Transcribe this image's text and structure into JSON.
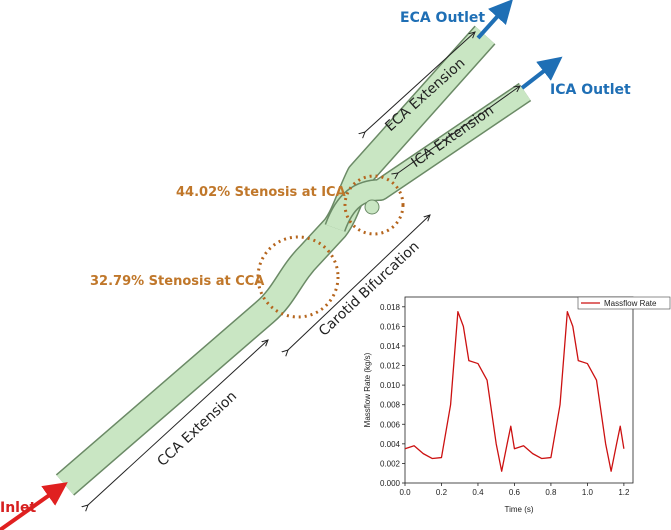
{
  "labels": {
    "eca_outlet": "ECA Outlet",
    "ica_outlet": "ICA Outlet",
    "eca_extension": "ECA Extension",
    "ica_extension": "ICA Extension",
    "ica_stenosis": "44.02% Stenosis at ICA",
    "cca_stenosis": "32.79% Stenosis at CCA",
    "carotid_bifurcation": "Carotid Bifurcation",
    "cca_extension": "CCA Extension",
    "inlet": "Inlet"
  },
  "chart_data": {
    "type": "line",
    "x_label": "Time (s)",
    "y_label": "Massflow Rate (kg/s)",
    "x": [
      0.0,
      0.05,
      0.1,
      0.15,
      0.2,
      0.25,
      0.29,
      0.32,
      0.35,
      0.4,
      0.45,
      0.5,
      0.53,
      0.56,
      0.58,
      0.6,
      0.65,
      0.7,
      0.75,
      0.8,
      0.85,
      0.89,
      0.92,
      0.95,
      1.0,
      1.05,
      1.1,
      1.13,
      1.16,
      1.18,
      1.2
    ],
    "series": [
      {
        "name": "Massflow Rate",
        "color": "#cc1111",
        "values": [
          0.0035,
          0.0038,
          0.003,
          0.0025,
          0.0026,
          0.008,
          0.0175,
          0.016,
          0.0125,
          0.0122,
          0.0105,
          0.004,
          0.0012,
          0.004,
          0.0058,
          0.0035,
          0.0038,
          0.003,
          0.0025,
          0.0026,
          0.008,
          0.0175,
          0.016,
          0.0125,
          0.0122,
          0.0105,
          0.004,
          0.0012,
          0.004,
          0.0058,
          0.0035
        ]
      }
    ],
    "xlim": [
      0,
      1.25
    ],
    "ylim": [
      0,
      0.019
    ],
    "xticks": [
      {
        "value": 0.0,
        "label": "0.0"
      },
      0.2,
      0.4,
      0.6,
      0.8,
      {
        "value": 1.0,
        "label": "1.0"
      },
      1.2
    ],
    "yticks": [
      {
        "value": 0.0,
        "label": "0.000"
      },
      0.002,
      0.004,
      0.006,
      0.008,
      {
        "value": 0.01,
        "label": "0.010"
      },
      0.012,
      0.014,
      0.016,
      0.018
    ],
    "legend": "upper right"
  }
}
